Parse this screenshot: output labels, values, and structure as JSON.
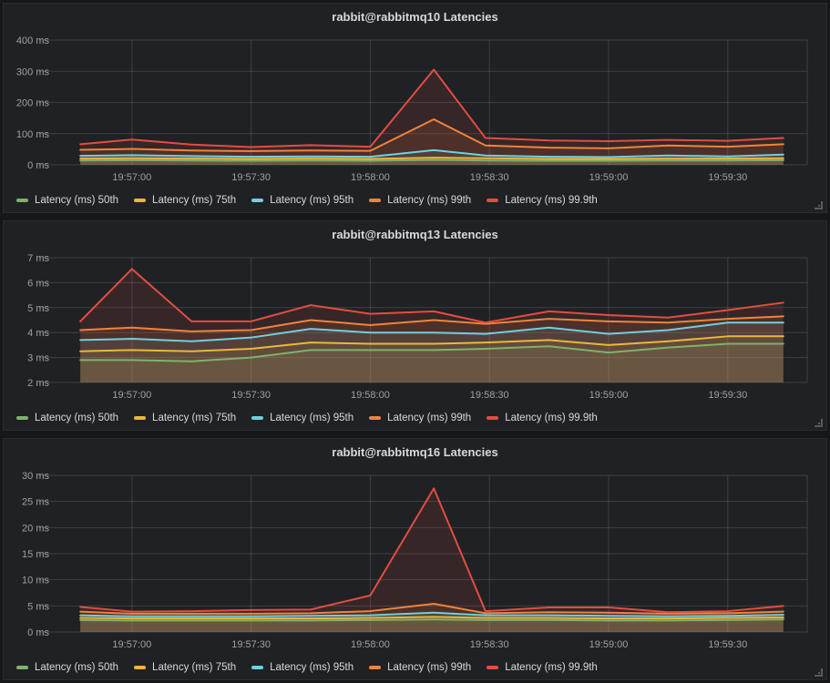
{
  "theme": {
    "page_bg": "#161719",
    "panel_bg": "#1f2124",
    "title_color": "#d8d9da",
    "axis_color": "#9fa1a4",
    "grid_color": "rgba(255,255,255,0.14)",
    "fill_opacity": 0.12,
    "line_width": 2
  },
  "chart_data": [
    {
      "type": "area",
      "title": "rabbit@rabbitmq10 Latencies",
      "xlabel": "",
      "ylabel": "",
      "unit": "ms",
      "grid": true,
      "legend_position": "bottom",
      "xlim": [
        41,
        230
      ],
      "ylim": [
        0,
        400
      ],
      "x_seconds": [
        47,
        60,
        75,
        90,
        105,
        120,
        136,
        149,
        165,
        180,
        195,
        210,
        224
      ],
      "x_ticks": [
        {
          "t": 60,
          "label": "19:57:00"
        },
        {
          "t": 90,
          "label": "19:57:30"
        },
        {
          "t": 120,
          "label": "19:58:00"
        },
        {
          "t": 150,
          "label": "19:58:30"
        },
        {
          "t": 180,
          "label": "19:59:00"
        },
        {
          "t": 210,
          "label": "19:59:30"
        }
      ],
      "y_ticks": [
        {
          "value": 0,
          "label": "0 ms"
        },
        {
          "value": 100,
          "label": "100 ms"
        },
        {
          "value": 200,
          "label": "200 ms"
        },
        {
          "value": 300,
          "label": "300 ms"
        },
        {
          "value": 400,
          "label": "400 ms"
        }
      ],
      "series": [
        {
          "name": "Latency (ms) 50th",
          "color": "#7EB26D",
          "values": [
            14,
            15,
            14,
            13,
            14,
            13,
            16,
            14,
            13,
            13,
            14,
            14,
            15
          ]
        },
        {
          "name": "Latency (ms) 75th",
          "color": "#EAB839",
          "values": [
            20,
            21,
            20,
            19,
            20,
            19,
            23,
            21,
            19,
            19,
            20,
            20,
            21
          ]
        },
        {
          "name": "Latency (ms) 95th",
          "color": "#6ED0E0",
          "values": [
            29,
            31,
            28,
            26,
            27,
            26,
            47,
            30,
            26,
            25,
            30,
            27,
            33
          ]
        },
        {
          "name": "Latency (ms) 99th",
          "color": "#EF843C",
          "values": [
            48,
            51,
            46,
            44,
            46,
            45,
            146,
            62,
            55,
            53,
            62,
            58,
            66
          ]
        },
        {
          "name": "Latency (ms) 99.9th",
          "color": "#E24D42",
          "values": [
            66,
            81,
            65,
            57,
            63,
            58,
            305,
            86,
            78,
            76,
            80,
            77,
            86
          ]
        }
      ]
    },
    {
      "type": "area",
      "title": "rabbit@rabbitmq13 Latencies",
      "xlabel": "",
      "ylabel": "",
      "unit": "ms",
      "grid": true,
      "legend_position": "bottom",
      "xlim": [
        41,
        230
      ],
      "ylim": [
        2,
        7
      ],
      "x_seconds": [
        47,
        60,
        75,
        90,
        105,
        120,
        136,
        149,
        165,
        180,
        195,
        210,
        224
      ],
      "x_ticks": [
        {
          "t": 60,
          "label": "19:57:00"
        },
        {
          "t": 90,
          "label": "19:57:30"
        },
        {
          "t": 120,
          "label": "19:58:00"
        },
        {
          "t": 150,
          "label": "19:58:30"
        },
        {
          "t": 180,
          "label": "19:59:00"
        },
        {
          "t": 210,
          "label": "19:59:30"
        }
      ],
      "y_ticks": [
        {
          "value": 2,
          "label": "2 ms"
        },
        {
          "value": 3,
          "label": "3 ms"
        },
        {
          "value": 4,
          "label": "4 ms"
        },
        {
          "value": 5,
          "label": "5 ms"
        },
        {
          "value": 6,
          "label": "6 ms"
        },
        {
          "value": 7,
          "label": "7 ms"
        }
      ],
      "series": [
        {
          "name": "Latency (ms) 50th",
          "color": "#7EB26D",
          "values": [
            2.9,
            2.9,
            2.85,
            3.0,
            3.3,
            3.3,
            3.3,
            3.35,
            3.45,
            3.2,
            3.4,
            3.55,
            3.55
          ]
        },
        {
          "name": "Latency (ms) 75th",
          "color": "#EAB839",
          "values": [
            3.25,
            3.3,
            3.25,
            3.35,
            3.6,
            3.55,
            3.55,
            3.6,
            3.7,
            3.5,
            3.65,
            3.85,
            3.85
          ]
        },
        {
          "name": "Latency (ms) 95th",
          "color": "#6ED0E0",
          "values": [
            3.7,
            3.75,
            3.65,
            3.8,
            4.15,
            4.0,
            4.0,
            3.95,
            4.2,
            3.95,
            4.1,
            4.4,
            4.4
          ]
        },
        {
          "name": "Latency (ms) 99th",
          "color": "#EF843C",
          "values": [
            4.1,
            4.2,
            4.05,
            4.1,
            4.5,
            4.3,
            4.5,
            4.35,
            4.55,
            4.45,
            4.4,
            4.55,
            4.65
          ]
        },
        {
          "name": "Latency (ms) 99.9th",
          "color": "#E24D42",
          "values": [
            4.45,
            6.55,
            4.45,
            4.45,
            5.1,
            4.75,
            4.85,
            4.4,
            4.85,
            4.7,
            4.6,
            4.9,
            5.2
          ]
        }
      ]
    },
    {
      "type": "area",
      "title": "rabbit@rabbitmq16 Latencies",
      "xlabel": "",
      "ylabel": "",
      "unit": "ms",
      "grid": true,
      "legend_position": "bottom",
      "xlim": [
        41,
        230
      ],
      "ylim": [
        0,
        30
      ],
      "x_seconds": [
        47,
        60,
        75,
        90,
        105,
        120,
        136,
        149,
        165,
        180,
        195,
        210,
        224
      ],
      "x_ticks": [
        {
          "t": 60,
          "label": "19:57:00"
        },
        {
          "t": 90,
          "label": "19:57:30"
        },
        {
          "t": 120,
          "label": "19:58:00"
        },
        {
          "t": 150,
          "label": "19:58:30"
        },
        {
          "t": 180,
          "label": "19:59:00"
        },
        {
          "t": 210,
          "label": "19:59:30"
        }
      ],
      "y_ticks": [
        {
          "value": 0,
          "label": "0 ms"
        },
        {
          "value": 5,
          "label": "5 ms"
        },
        {
          "value": 10,
          "label": "10 ms"
        },
        {
          "value": 15,
          "label": "15 ms"
        },
        {
          "value": 20,
          "label": "20 ms"
        },
        {
          "value": 25,
          "label": "25 ms"
        },
        {
          "value": 30,
          "label": "30 ms"
        }
      ],
      "series": [
        {
          "name": "Latency (ms) 50th",
          "color": "#7EB26D",
          "values": [
            2.3,
            2.2,
            2.2,
            2.2,
            2.2,
            2.3,
            2.4,
            2.3,
            2.3,
            2.2,
            2.2,
            2.3,
            2.4
          ]
        },
        {
          "name": "Latency (ms) 75th",
          "color": "#EAB839",
          "values": [
            2.7,
            2.6,
            2.6,
            2.6,
            2.6,
            2.7,
            2.9,
            2.7,
            2.7,
            2.6,
            2.6,
            2.7,
            2.8
          ]
        },
        {
          "name": "Latency (ms) 95th",
          "color": "#6ED0E0",
          "values": [
            3.2,
            3.0,
            3.0,
            3.0,
            3.1,
            3.2,
            3.7,
            3.2,
            3.2,
            3.1,
            3.0,
            3.1,
            3.3
          ]
        },
        {
          "name": "Latency (ms) 99th",
          "color": "#EF843C",
          "values": [
            3.9,
            3.5,
            3.5,
            3.5,
            3.6,
            4.0,
            5.4,
            3.6,
            3.8,
            3.7,
            3.5,
            3.6,
            3.9
          ]
        },
        {
          "name": "Latency (ms) 99.9th",
          "color": "#E24D42",
          "values": [
            4.8,
            3.9,
            4.0,
            4.2,
            4.3,
            7.0,
            27.5,
            4.0,
            4.7,
            4.7,
            3.8,
            4.0,
            5.0
          ]
        }
      ]
    }
  ]
}
